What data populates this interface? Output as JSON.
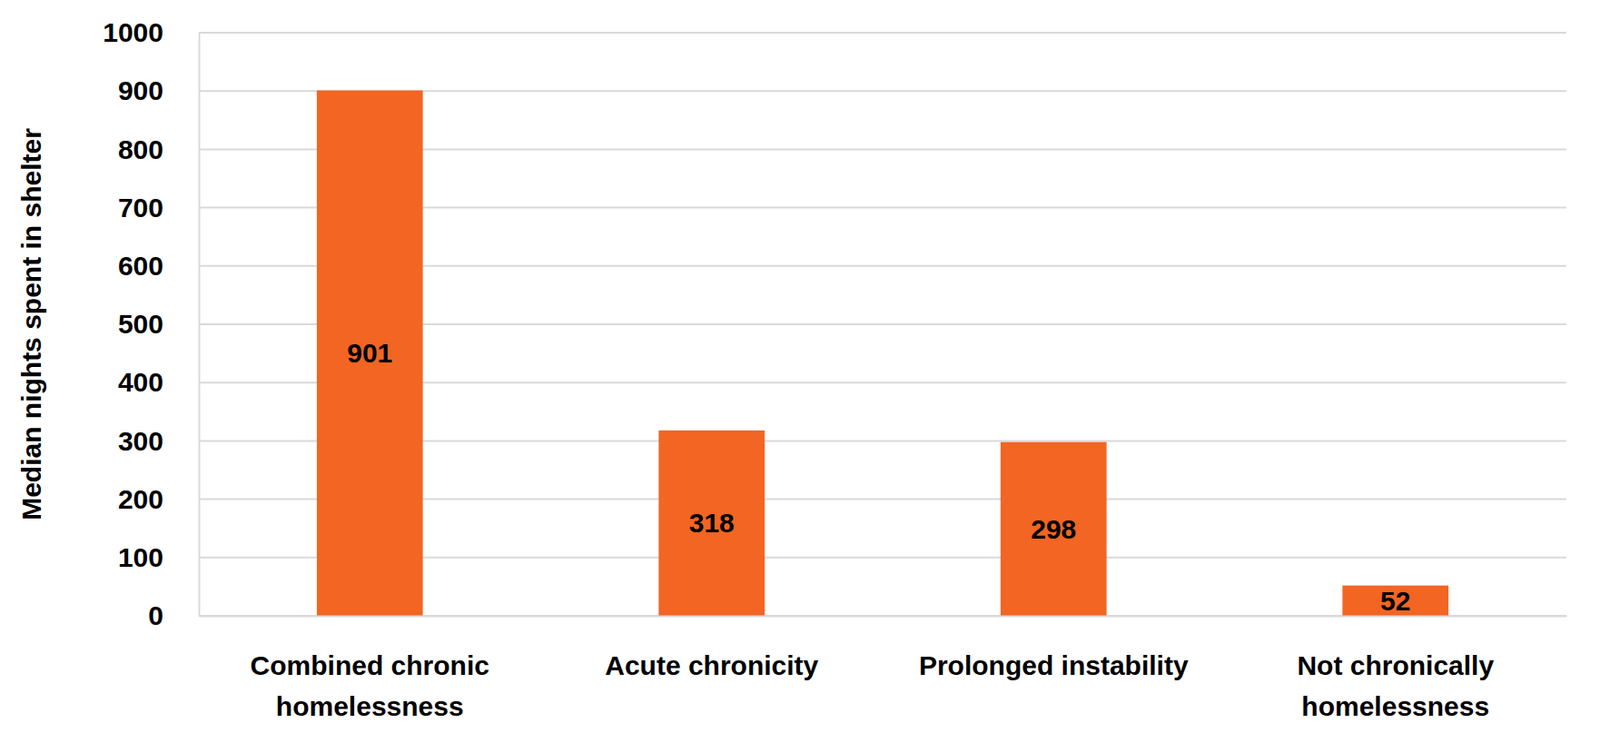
{
  "chart_data": {
    "type": "bar",
    "y_label": "Median nights spent in shelter",
    "categories": [
      "Combined chronic homelessness",
      "Acute chronicity",
      "Prolonged instability",
      "Not chronically homelessness"
    ],
    "values": [
      901,
      318,
      298,
      52
    ],
    "color": "#F26522",
    "ylim": [
      0,
      1000
    ],
    "yticks": [
      0,
      100,
      200,
      300,
      400,
      500,
      600,
      700,
      800,
      900,
      1000
    ],
    "grid": true,
    "data_labels": true
  }
}
